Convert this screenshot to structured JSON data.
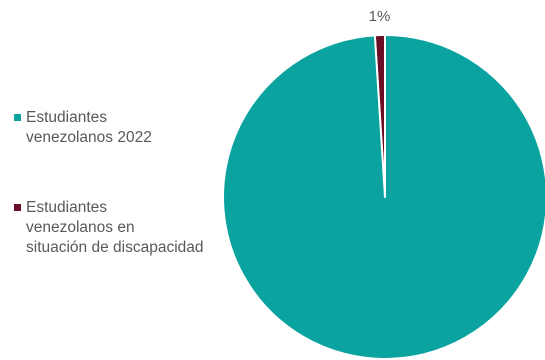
{
  "chart_data": {
    "type": "pie",
    "title": "",
    "slices": [
      {
        "label": "Estudiantes venezolanos 2022",
        "value": 99,
        "color": "#0ba3a0",
        "data_label": ""
      },
      {
        "label": "Estudiantes venezolanos en situación de discapacidad",
        "value": 1,
        "color": "#6b0e25",
        "data_label": "1%"
      }
    ],
    "legend": {
      "position": "left",
      "lines": [
        [
          "Estudiantes",
          "venezolanos 2022"
        ],
        [
          "Estudiantes",
          "venezolanos en",
          "situación de discapacidad"
        ]
      ]
    }
  }
}
